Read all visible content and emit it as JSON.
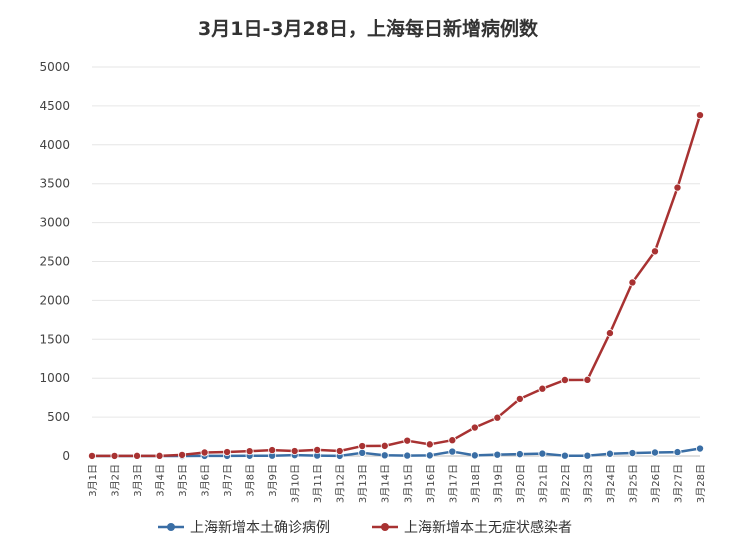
{
  "chart_data": {
    "type": "line",
    "title": "3月1日-3月28日，上海每日新增病例数",
    "xlabel": "",
    "ylabel": "",
    "ylim": [
      0,
      5000
    ],
    "yticks": [
      0,
      500,
      1000,
      1500,
      2000,
      2500,
      3000,
      3500,
      4000,
      4500,
      5000
    ],
    "grid": true,
    "legend": "bottom",
    "categories": [
      "3月1日",
      "3月2日",
      "3月3日",
      "3月4日",
      "3月5日",
      "3月6日",
      "3月7日",
      "3月8日",
      "3月9日",
      "3月10日",
      "3月11日",
      "3月12日",
      "3月13日",
      "3月14日",
      "3月15日",
      "3月16日",
      "3月17日",
      "3月18日",
      "3月19日",
      "3月20日",
      "3月21日",
      "3月22日",
      "3月23日",
      "3月24日",
      "3月25日",
      "3月26日",
      "3月27日",
      "3月28日"
    ],
    "series": [
      {
        "name": "上海新增本土确诊病例",
        "color": "#3a6ea5",
        "values": [
          0,
          0,
          0,
          0,
          0,
          1,
          1,
          3,
          4,
          11,
          5,
          1,
          41,
          9,
          5,
          8,
          57,
          8,
          17,
          24,
          31,
          4,
          4,
          29,
          38,
          45,
          50,
          96
        ]
      },
      {
        "name": "上海新增本土无症状感染者",
        "color": "#a83232",
        "values": [
          1,
          1,
          2,
          2,
          14,
          45,
          51,
          62,
          76,
          64,
          78,
          64,
          128,
          130,
          197,
          150,
          203,
          366,
          492,
          734,
          865,
          977,
          979,
          1580,
          2231,
          2631,
          3450,
          4381
        ]
      }
    ]
  }
}
